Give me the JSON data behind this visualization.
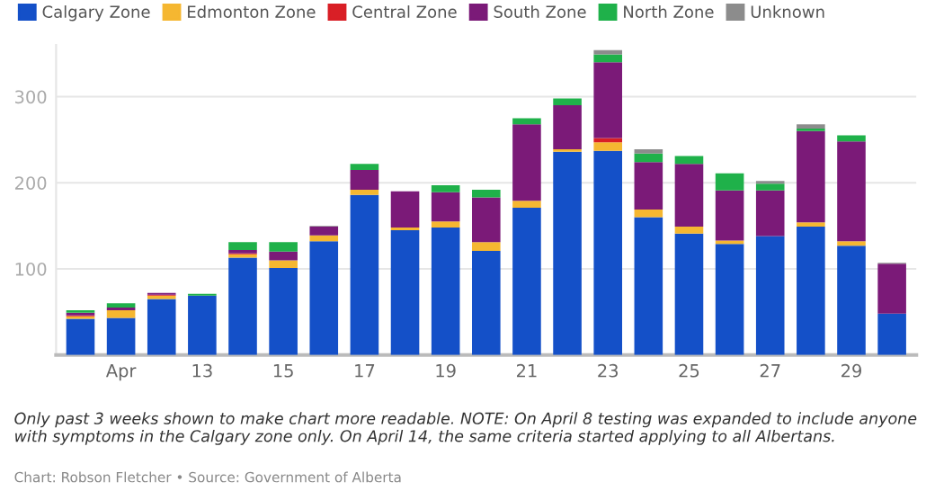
{
  "chart_data": {
    "type": "bar",
    "stacked": true,
    "categories": [
      null,
      "Apr",
      null,
      "13",
      null,
      "15",
      null,
      "17",
      null,
      "19",
      null,
      "21",
      null,
      "23",
      null,
      "25",
      null,
      "27",
      null,
      "29",
      null
    ],
    "series": [
      {
        "name": "Calgary Zone",
        "color": "#1450c8",
        "values": [
          42,
          43,
          65,
          69,
          113,
          101,
          132,
          186,
          145,
          148,
          121,
          171,
          236,
          237,
          160,
          141,
          129,
          138,
          149,
          127,
          48
        ]
      },
      {
        "name": "Edmonton Zone",
        "color": "#f5b731",
        "values": [
          3,
          9,
          4,
          0,
          4,
          9,
          7,
          6,
          3,
          7,
          10,
          8,
          3,
          10,
          9,
          8,
          4,
          0,
          5,
          5,
          0
        ]
      },
      {
        "name": "Central Zone",
        "color": "#d91f26",
        "values": [
          1,
          0,
          1,
          0,
          1,
          0,
          0,
          0,
          0,
          0,
          0,
          0,
          0,
          5,
          0,
          0,
          0,
          0,
          0,
          0,
          0
        ]
      },
      {
        "name": "South Zone",
        "color": "#7b1a78",
        "values": [
          3,
          3,
          2,
          0,
          4,
          10,
          10,
          23,
          42,
          34,
          52,
          89,
          51,
          88,
          55,
          73,
          58,
          53,
          106,
          116,
          58
        ]
      },
      {
        "name": "North Zone",
        "color": "#1fb14a",
        "values": [
          3,
          5,
          0,
          2,
          9,
          11,
          0,
          7,
          0,
          8,
          9,
          7,
          8,
          9,
          10,
          9,
          20,
          8,
          3,
          7,
          0
        ]
      },
      {
        "name": "Unknown",
        "color": "#8c8c8c",
        "values": [
          0,
          0,
          0,
          0,
          0,
          0,
          1,
          0,
          0,
          0,
          0,
          0,
          0,
          5,
          5,
          0,
          0,
          3,
          5,
          0,
          1
        ]
      }
    ],
    "ylim": [
      0,
      360
    ],
    "yticks": [
      100,
      200,
      300
    ],
    "grid": "y",
    "legend": "top",
    "annotations": [
      "Only past 3 weeks shown to make chart more readable. NOTE: On April 8 testing was expanded to include anyone with symptoms in the Calgary zone only. On April 14, the same criteria started applying to all Albertans.",
      "Chart: Robson Fletcher • Source: Government of Alberta"
    ]
  }
}
